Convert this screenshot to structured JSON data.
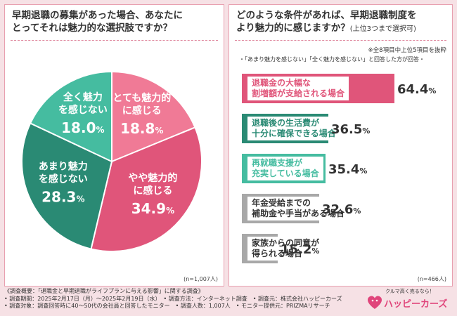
{
  "left": {
    "title_line1": "早期退職の募集があった場合、あなたに",
    "title_line2": "とってそれは魅力的な選択肢ですか？",
    "n_label": "(n=1,007人)"
  },
  "right": {
    "title_line1": "どのような条件があれば、早期退職制度を",
    "title_line2": "より魅力的に感じますか？",
    "title_sub": "(上位3つまで選択可)",
    "note1": "※全8項目中上位5項目を抜粋",
    "note2": "・「あまり魅力を感じない」「全く魅力を感じない」と回答した方が回答・",
    "n_label": "(n=466人)"
  },
  "chart_data": [
    {
      "type": "pie",
      "slices": [
        {
          "label_line1": "とても魅力的",
          "label_line2": "に感じる",
          "value": 18.8,
          "value_text": "18.8",
          "unit": "%",
          "color": "#f07a96"
        },
        {
          "label_line1": "やや魅力的",
          "label_line2": "に感じる",
          "value": 34.9,
          "value_text": "34.9",
          "unit": "%",
          "color": "#e0557a"
        },
        {
          "label_line1": "あまり魅力",
          "label_line2": "を感じない",
          "value": 28.3,
          "value_text": "28.3",
          "unit": "%",
          "color": "#2a8a74"
        },
        {
          "label_line1": "全く魅力",
          "label_line2": "を感じない",
          "value": 18.0,
          "value_text": "18.0",
          "unit": "%",
          "color": "#45bca0"
        }
      ]
    },
    {
      "type": "bar",
      "orientation": "horizontal",
      "bars": [
        {
          "label_line1": "退職金の大幅な",
          "label_line2": "割増額が支給される場合",
          "value": 64.4,
          "value_text": "64.4",
          "unit": "%",
          "color": "#e0557a"
        },
        {
          "label_line1": "退職後の生活費が",
          "label_line2": "十分に確保できる場合",
          "value": 36.5,
          "value_text": "36.5",
          "unit": "%",
          "color": "#2a8a74"
        },
        {
          "label_line1": "再就職支援が",
          "label_line2": "充実している場合",
          "value": 35.4,
          "value_text": "35.4",
          "unit": "%",
          "color": "#45bca0"
        },
        {
          "label_line1": "年金受給までの",
          "label_line2": "補助金や手当がある場合",
          "value": 32.6,
          "value_text": "32.6",
          "unit": "%",
          "color": "#a8a8a8"
        },
        {
          "label_line1": "家族からの同意が",
          "label_line2": "得られる場合",
          "value": 15.2,
          "value_text": "15.2",
          "unit": "%",
          "color": "#a8a8a8"
        }
      ]
    }
  ],
  "footer": {
    "line1": "《調査概要：「退職金と早期退職がライフプランに与える影響」に関する調査》",
    "line2": "• 調査期間：2025年2月17日（月）〜2025年2月19日（水）　• 調査方法：インターネット調査　• 調査元：株式会社ハッピーカーズ",
    "line3": "• 調査対象：調査回答時に40〜50代の会社員と回答したモニター　• 調査人数：1,007人　• モニター提供元：PRIZMAリサーチ"
  },
  "logo": {
    "tagline": "クルマ高く売るなら！",
    "name": "ハッピーカーズ"
  }
}
